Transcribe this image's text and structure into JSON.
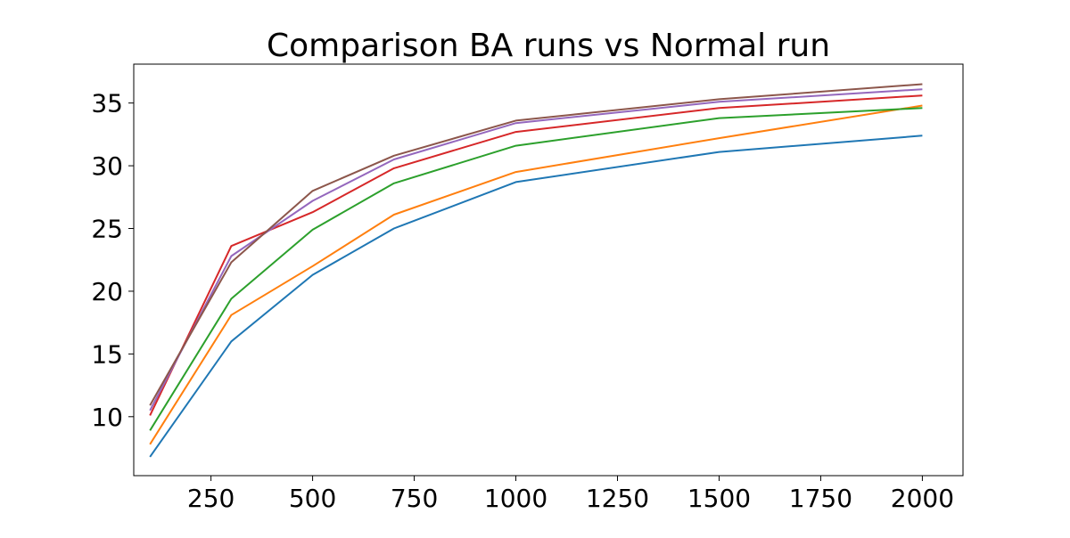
{
  "chart_data": {
    "type": "line",
    "title": "Comparison BA runs vs Normal run",
    "xlabel": "",
    "ylabel": "",
    "x": [
      100,
      300,
      500,
      700,
      1000,
      1500,
      2000
    ],
    "xlim": [
      60,
      2100
    ],
    "ylim": [
      5.3,
      38.1
    ],
    "xticks": [
      250,
      500,
      750,
      1000,
      1250,
      1500,
      1750,
      2000
    ],
    "yticks": [
      10,
      15,
      20,
      25,
      30,
      35
    ],
    "grid": false,
    "legend": "none",
    "series": [
      {
        "color": "#1f77b4",
        "values": [
          6.8,
          16.0,
          21.3,
          25.0,
          28.7,
          31.1,
          32.4
        ]
      },
      {
        "color": "#ff7f0e",
        "values": [
          7.8,
          18.1,
          22.0,
          26.1,
          29.5,
          32.2,
          34.8
        ]
      },
      {
        "color": "#2ca02c",
        "values": [
          8.9,
          19.4,
          24.9,
          28.6,
          31.6,
          33.8,
          34.6
        ]
      },
      {
        "color": "#d62728",
        "values": [
          10.1,
          23.6,
          26.3,
          29.8,
          32.7,
          34.6,
          35.6
        ]
      },
      {
        "color": "#9467bd",
        "values": [
          10.5,
          22.8,
          27.2,
          30.5,
          33.4,
          35.1,
          36.1
        ]
      },
      {
        "color": "#8c564b",
        "values": [
          10.9,
          22.3,
          28.0,
          30.8,
          33.6,
          35.3,
          36.5
        ]
      }
    ]
  }
}
